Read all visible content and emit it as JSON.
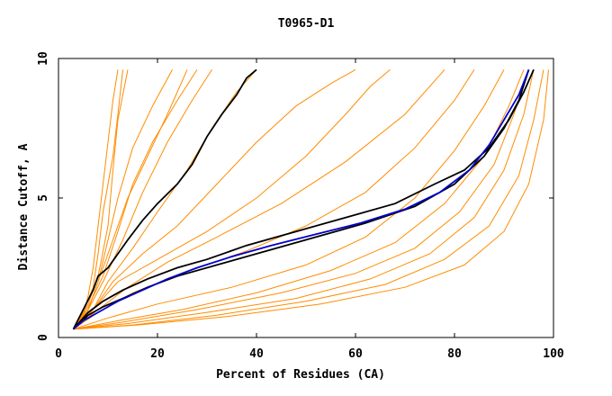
{
  "chart_data": {
    "type": "line",
    "title": "T0965-D1",
    "xlabel": "Percent of Residues (CA)",
    "ylabel": "Distance Cutoff, A",
    "xlim": [
      0,
      100
    ],
    "ylim": [
      0,
      10
    ],
    "x_ticks": [
      "0",
      "20",
      "40",
      "60",
      "80",
      "100"
    ],
    "y_ticks": [
      "0",
      "5",
      "10"
    ],
    "grid": false,
    "legend": "none",
    "colors": {
      "orange": "#ff8c00",
      "black": "#000000",
      "blue": "#0000cc"
    },
    "series": [
      {
        "color": "orange",
        "points": [
          [
            3,
            0.3
          ],
          [
            5,
            0.8
          ],
          [
            6,
            1.5
          ],
          [
            7,
            2.5
          ],
          [
            8,
            4.0
          ],
          [
            9,
            5.5
          ],
          [
            10,
            7.0
          ],
          [
            11,
            8.5
          ],
          [
            12,
            9.6
          ]
        ]
      },
      {
        "color": "orange",
        "points": [
          [
            3,
            0.3
          ],
          [
            5,
            0.9
          ],
          [
            7,
            1.8
          ],
          [
            8,
            3.0
          ],
          [
            9,
            4.5
          ],
          [
            11,
            6.5
          ],
          [
            12,
            8.0
          ],
          [
            13,
            9.6
          ]
        ]
      },
      {
        "color": "orange",
        "points": [
          [
            3,
            0.3
          ],
          [
            6,
            1.2
          ],
          [
            8,
            2.2
          ],
          [
            10,
            4.0
          ],
          [
            11,
            6.0
          ],
          [
            12,
            7.8
          ],
          [
            14,
            9.6
          ]
        ]
      },
      {
        "color": "orange",
        "points": [
          [
            3,
            0.3
          ],
          [
            6,
            1.0
          ],
          [
            8,
            2.0
          ],
          [
            10,
            3.5
          ],
          [
            12,
            5.0
          ],
          [
            15,
            6.8
          ],
          [
            19,
            8.3
          ],
          [
            23,
            9.6
          ]
        ]
      },
      {
        "color": "orange",
        "points": [
          [
            3,
            0.3
          ],
          [
            6,
            1.0
          ],
          [
            8,
            2.0
          ],
          [
            11,
            3.5
          ],
          [
            14,
            5.0
          ],
          [
            18,
            6.5
          ],
          [
            22,
            8.0
          ],
          [
            26,
            9.6
          ]
        ]
      },
      {
        "color": "orange",
        "points": [
          [
            3,
            0.3
          ],
          [
            6,
            1.1
          ],
          [
            9,
            2.2
          ],
          [
            12,
            3.8
          ],
          [
            15,
            5.5
          ],
          [
            19,
            7.0
          ],
          [
            24,
            8.5
          ],
          [
            28,
            9.6
          ]
        ]
      },
      {
        "color": "orange",
        "points": [
          [
            3,
            0.3
          ],
          [
            6,
            1.0
          ],
          [
            9,
            2.0
          ],
          [
            13,
            3.5
          ],
          [
            17,
            5.2
          ],
          [
            22,
            7.0
          ],
          [
            27,
            8.5
          ],
          [
            31,
            9.6
          ]
        ]
      },
      {
        "color": "orange",
        "points": [
          [
            3,
            0.3
          ],
          [
            7,
            1.0
          ],
          [
            10,
            2.0
          ],
          [
            15,
            3.2
          ],
          [
            20,
            4.5
          ],
          [
            26,
            6.0
          ],
          [
            31,
            7.5
          ],
          [
            36,
            8.8
          ],
          [
            40,
            9.6
          ]
        ]
      },
      {
        "color": "orange",
        "points": [
          [
            3,
            0.3
          ],
          [
            7,
            1.0
          ],
          [
            11,
            2.0
          ],
          [
            17,
            3.0
          ],
          [
            24,
            4.0
          ],
          [
            32,
            5.5
          ],
          [
            40,
            7.0
          ],
          [
            48,
            8.3
          ],
          [
            55,
            9.1
          ],
          [
            60,
            9.6
          ]
        ]
      },
      {
        "color": "orange",
        "points": [
          [
            3,
            0.3
          ],
          [
            7,
            1.0
          ],
          [
            12,
            2.0
          ],
          [
            20,
            2.8
          ],
          [
            30,
            3.8
          ],
          [
            40,
            5.0
          ],
          [
            50,
            6.5
          ],
          [
            58,
            8.0
          ],
          [
            63,
            9.0
          ],
          [
            67,
            9.6
          ]
        ]
      },
      {
        "color": "orange",
        "points": [
          [
            3,
            0.3
          ],
          [
            8,
            1.0
          ],
          [
            14,
            1.8
          ],
          [
            22,
            2.7
          ],
          [
            32,
            3.6
          ],
          [
            45,
            4.8
          ],
          [
            58,
            6.3
          ],
          [
            70,
            8.0
          ],
          [
            78,
            9.6
          ]
        ]
      },
      {
        "color": "orange",
        "points": [
          [
            3,
            0.3
          ],
          [
            8,
            0.9
          ],
          [
            15,
            1.6
          ],
          [
            25,
            2.3
          ],
          [
            38,
            3.1
          ],
          [
            50,
            4.0
          ],
          [
            62,
            5.2
          ],
          [
            72,
            6.8
          ],
          [
            80,
            8.5
          ],
          [
            84,
            9.6
          ]
        ]
      },
      {
        "color": "orange",
        "points": [
          [
            3,
            0.3
          ],
          [
            10,
            0.7
          ],
          [
            20,
            1.2
          ],
          [
            35,
            1.8
          ],
          [
            50,
            2.6
          ],
          [
            62,
            3.6
          ],
          [
            72,
            5.0
          ],
          [
            80,
            6.7
          ],
          [
            86,
            8.3
          ],
          [
            90,
            9.6
          ]
        ]
      },
      {
        "color": "orange",
        "points": [
          [
            3,
            0.3
          ],
          [
            12,
            0.6
          ],
          [
            25,
            1.0
          ],
          [
            40,
            1.6
          ],
          [
            55,
            2.4
          ],
          [
            68,
            3.4
          ],
          [
            78,
            4.8
          ],
          [
            86,
            6.5
          ],
          [
            91,
            8.3
          ],
          [
            94,
            9.6
          ]
        ]
      },
      {
        "color": "orange",
        "points": [
          [
            3,
            0.3
          ],
          [
            14,
            0.5
          ],
          [
            30,
            0.9
          ],
          [
            48,
            1.4
          ],
          [
            63,
            2.1
          ],
          [
            75,
            3.0
          ],
          [
            84,
            4.3
          ],
          [
            90,
            6.0
          ],
          [
            94,
            8.0
          ],
          [
            96,
            9.6
          ]
        ]
      },
      {
        "color": "orange",
        "points": [
          [
            3,
            0.3
          ],
          [
            15,
            0.45
          ],
          [
            32,
            0.8
          ],
          [
            50,
            1.3
          ],
          [
            66,
            1.9
          ],
          [
            78,
            2.8
          ],
          [
            87,
            4.0
          ],
          [
            93,
            5.8
          ],
          [
            96,
            7.8
          ],
          [
            98,
            9.6
          ]
        ]
      },
      {
        "color": "orange",
        "points": [
          [
            3,
            0.3
          ],
          [
            16,
            0.45
          ],
          [
            34,
            0.75
          ],
          [
            53,
            1.2
          ],
          [
            70,
            1.8
          ],
          [
            82,
            2.6
          ],
          [
            90,
            3.8
          ],
          [
            95,
            5.5
          ],
          [
            98,
            7.8
          ],
          [
            99,
            9.6
          ]
        ]
      },
      {
        "color": "orange",
        "points": [
          [
            3,
            0.3
          ],
          [
            13,
            0.55
          ],
          [
            28,
            1.0
          ],
          [
            45,
            1.6
          ],
          [
            60,
            2.3
          ],
          [
            72,
            3.2
          ],
          [
            81,
            4.5
          ],
          [
            88,
            6.2
          ],
          [
            92,
            8.0
          ],
          [
            95,
            9.6
          ]
        ]
      },
      {
        "color": "black",
        "points": [
          [
            3,
            0.3
          ],
          [
            5,
            1.0
          ],
          [
            7,
            1.7
          ],
          [
            8,
            2.2
          ],
          [
            10,
            2.5
          ],
          [
            12,
            3.0
          ],
          [
            14,
            3.5
          ],
          [
            17,
            4.2
          ],
          [
            20,
            4.8
          ],
          [
            24,
            5.5
          ],
          [
            27,
            6.2
          ],
          [
            30,
            7.2
          ],
          [
            33,
            8.0
          ],
          [
            36,
            8.7
          ],
          [
            38,
            9.3
          ],
          [
            40,
            9.6
          ]
        ]
      },
      {
        "color": "black",
        "points": [
          [
            3,
            0.3
          ],
          [
            6,
            0.9
          ],
          [
            9,
            1.3
          ],
          [
            13,
            1.7
          ],
          [
            18,
            2.1
          ],
          [
            24,
            2.5
          ],
          [
            30,
            2.8
          ],
          [
            38,
            3.3
          ],
          [
            48,
            3.8
          ],
          [
            58,
            4.3
          ],
          [
            68,
            4.8
          ],
          [
            76,
            5.5
          ],
          [
            82,
            6.0
          ],
          [
            87,
            6.8
          ],
          [
            91,
            7.8
          ],
          [
            94,
            8.8
          ],
          [
            96,
            9.6
          ]
        ]
      },
      {
        "color": "black",
        "points": [
          [
            3,
            0.3
          ],
          [
            6,
            0.8
          ],
          [
            9,
            1.1
          ],
          [
            13,
            1.4
          ],
          [
            18,
            1.8
          ],
          [
            24,
            2.2
          ],
          [
            32,
            2.6
          ],
          [
            42,
            3.1
          ],
          [
            52,
            3.6
          ],
          [
            62,
            4.1
          ],
          [
            72,
            4.7
          ],
          [
            80,
            5.5
          ],
          [
            86,
            6.5
          ],
          [
            90,
            7.5
          ],
          [
            93,
            8.5
          ],
          [
            95,
            9.6
          ]
        ]
      },
      {
        "color": "blue",
        "points": [
          [
            3,
            0.3
          ],
          [
            5,
            0.6
          ],
          [
            8,
            0.9
          ],
          [
            12,
            1.3
          ],
          [
            17,
            1.7
          ],
          [
            22,
            2.1
          ],
          [
            28,
            2.5
          ],
          [
            35,
            2.9
          ],
          [
            43,
            3.3
          ],
          [
            52,
            3.7
          ],
          [
            61,
            4.1
          ],
          [
            70,
            4.6
          ],
          [
            77,
            5.2
          ],
          [
            83,
            6.0
          ],
          [
            87,
            6.9
          ],
          [
            90,
            7.8
          ],
          [
            93,
            8.7
          ],
          [
            95,
            9.6
          ]
        ]
      }
    ]
  }
}
